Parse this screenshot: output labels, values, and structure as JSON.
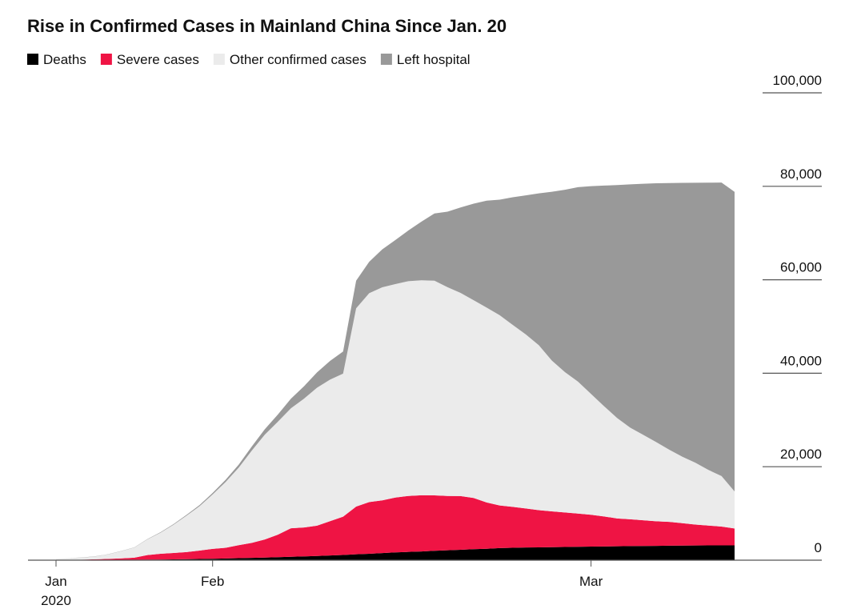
{
  "chart_data": {
    "type": "stacked-area",
    "title": "Rise in Confirmed Cases in Mainland China Since Jan. 20",
    "categories": [
      "Jan",
      null,
      null,
      null,
      null,
      null,
      null,
      null,
      null,
      null,
      null,
      null,
      "Feb",
      null,
      null,
      null,
      null,
      null,
      null,
      null,
      null,
      null,
      null,
      null,
      null,
      null,
      null,
      null,
      null,
      null,
      null,
      null,
      null,
      null,
      null,
      null,
      null,
      null,
      null,
      null,
      null,
      "Mar",
      null,
      null,
      null,
      null,
      null,
      null,
      null,
      null,
      null,
      null,
      null
    ],
    "year_label": "2020",
    "series": [
      {
        "name": "Deaths",
        "color": "#000000",
        "values": [
          6,
          9,
          17,
          25,
          41,
          56,
          80,
          106,
          132,
          170,
          213,
          259,
          304,
          361,
          425,
          490,
          563,
          636,
          722,
          811,
          908,
          1016,
          1113,
          1259,
          1380,
          1523,
          1665,
          1770,
          1868,
          2004,
          2118,
          2236,
          2345,
          2442,
          2592,
          2663,
          2715,
          2744,
          2788,
          2835,
          2870,
          2912,
          2943,
          2981,
          3012,
          3042,
          3070,
          3097,
          3119,
          3136,
          3158,
          3169,
          3176
        ]
      },
      {
        "name": "Severe cases",
        "color": "#ef1444",
        "values": [
          0,
          0,
          95,
          177,
          237,
          324,
          461,
          976,
          1239,
          1370,
          1527,
          1795,
          2110,
          2296,
          2788,
          3219,
          3859,
          4821,
          6101,
          6188,
          6484,
          7333,
          8204,
          10204,
          11053,
          11272,
          11741,
          11977,
          12017,
          11864,
          11633,
          11477,
          10968,
          9915,
          9126,
          8752,
          8346,
          7952,
          7664,
          7365,
          7110,
          6806,
          6416,
          5952,
          5737,
          5489,
          5264,
          5111,
          4794,
          4492,
          4257,
          4020,
          3610
        ]
      },
      {
        "name": "Other confirmed cases",
        "color": "#ebebeb",
        "values": [
          285,
          431,
          431,
          594,
          971,
          1546,
          2152,
          3373,
          4500,
          6047,
          7781,
          9494,
          11638,
          14073,
          16593,
          19723,
          22443,
          24164,
          25673,
          27550,
          29498,
          30293,
          30596,
          42430,
          44695,
          45601,
          45675,
          45957,
          45999,
          45941,
          44670,
          43488,
          42316,
          41691,
          40698,
          38920,
          37258,
          35306,
          32255,
          30049,
          28219,
          25846,
          23588,
          21481,
          19615,
          18295,
          16913,
          15422,
          14222,
          13229,
          11888,
          10811,
          7916
        ]
      },
      {
        "name": "Left hospital",
        "color": "#999999",
        "values": [
          0,
          0,
          28,
          34,
          38,
          49,
          51,
          60,
          103,
          124,
          171,
          243,
          328,
          475,
          632,
          892,
          1153,
          1540,
          2050,
          2649,
          3281,
          3996,
          4740,
          5911,
          6723,
          8096,
          9419,
          10844,
          12552,
          14376,
          16155,
          18264,
          20659,
          22888,
          24734,
          27323,
          29745,
          32495,
          36117,
          39002,
          41625,
          44462,
          47204,
          49856,
          52045,
          53726,
          55404,
          57065,
          58600,
          59897,
          61475,
          62793,
          64111
        ]
      }
    ],
    "ylim": [
      0,
      100000
    ],
    "yticks": [
      0,
      {
        "value": 20000,
        "label": "20,000"
      },
      {
        "value": 40000,
        "label": "40,000"
      },
      {
        "value": 60000,
        "label": "60,000"
      },
      {
        "value": 80000,
        "label": "80,000"
      },
      {
        "value": 100000,
        "label": "100,000"
      }
    ]
  }
}
